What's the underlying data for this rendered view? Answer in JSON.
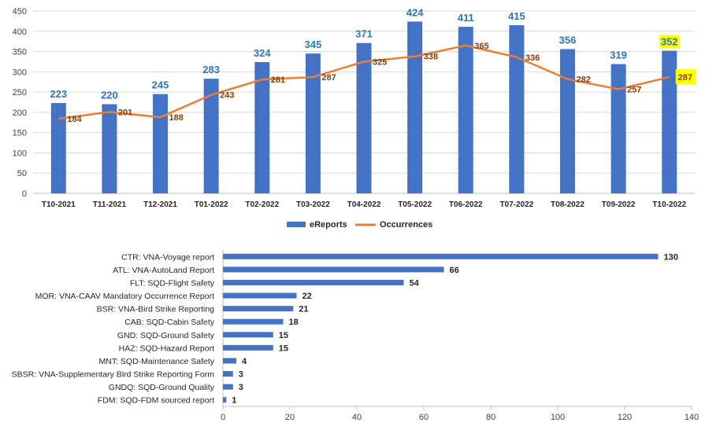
{
  "chart_data": [
    {
      "type": "bar",
      "categories": [
        "T10-2021",
        "T11-2021",
        "T12-2021",
        "T01-2022",
        "T02-2022",
        "T03-2022",
        "T04-2022",
        "T05-2022",
        "T06-2022",
        "T07-2022",
        "T08-2022",
        "T09-2022",
        "T10-2022"
      ],
      "series": [
        {
          "name": "eReports",
          "type": "bar",
          "values": [
            223,
            220,
            245,
            283,
            324,
            345,
            371,
            424,
            411,
            415,
            356,
            319,
            352
          ],
          "color": "#4472c4"
        },
        {
          "name": "Occurrences",
          "type": "line",
          "values": [
            184,
            201,
            188,
            243,
            281,
            287,
            325,
            338,
            365,
            336,
            282,
            257,
            287
          ],
          "color": "#ed7d31"
        }
      ],
      "yticks": [
        "0",
        "50",
        "100",
        "150",
        "200",
        "250",
        "300",
        "350",
        "400",
        "450"
      ],
      "ylim": [
        0,
        450
      ],
      "highlight_last": true,
      "highlight_color": "#ffff00",
      "legend_position": "bottom"
    },
    {
      "type": "bar",
      "orientation": "horizontal",
      "categories": [
        "CTR: VNA-Voyage report",
        "ATL: VNA-AutoLand Report",
        "FLT: SQD-Flight Safety",
        "MOR: VNA-CAAV Mandatory Occurrence Report",
        "BSR: VNA-Bird Strike Reporting",
        "CAB: SQD-Cabin Safety",
        "GND: SQD-Ground Safety",
        "HAZ: SQD-Hazard Report",
        "MNT: SQD-Maintenance Safety",
        "SBSR: VNA-Supplementary Bird Strike Reporting Form",
        "GNDQ: SQD-Ground Quality",
        "FDM: SQD-FDM sourced report"
      ],
      "values": [
        130,
        66,
        54,
        22,
        21,
        18,
        15,
        15,
        4,
        3,
        3,
        1
      ],
      "color": "#4472c4",
      "xticks": [
        "0",
        "20",
        "40",
        "60",
        "80",
        "100",
        "120",
        "140"
      ],
      "xlim": [
        0,
        140
      ]
    }
  ]
}
